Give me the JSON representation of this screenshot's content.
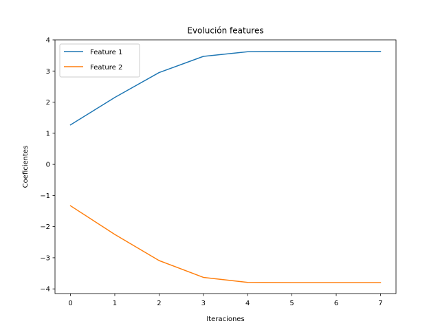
{
  "chart_data": {
    "type": "line",
    "title": "Evolución features",
    "xlabel": "Iteraciones",
    "ylabel": "Coeficientes",
    "x": [
      0,
      1,
      2,
      3,
      4,
      5,
      6,
      7
    ],
    "xlim": [
      -0.35,
      7.35
    ],
    "ylim": [
      -4.15,
      4.0
    ],
    "xticks": [
      0,
      1,
      2,
      3,
      4,
      5,
      6,
      7
    ],
    "yticks": [
      -4,
      -3,
      -2,
      -1,
      0,
      1,
      2,
      3,
      4
    ],
    "ytick_labels": [
      "−4",
      "−3",
      "−2",
      "−1",
      "0",
      "1",
      "2",
      "3",
      "4"
    ],
    "grid": false,
    "legend_position": "top-left",
    "series": [
      {
        "name": "Feature 1",
        "color": "#1f77b4",
        "values": [
          1.27,
          2.15,
          2.95,
          3.47,
          3.62,
          3.63,
          3.63,
          3.63
        ]
      },
      {
        "name": "Feature 2",
        "color": "#ff7f0e",
        "values": [
          -1.33,
          -2.25,
          -3.09,
          -3.63,
          -3.79,
          -3.8,
          -3.8,
          -3.8
        ]
      }
    ]
  }
}
